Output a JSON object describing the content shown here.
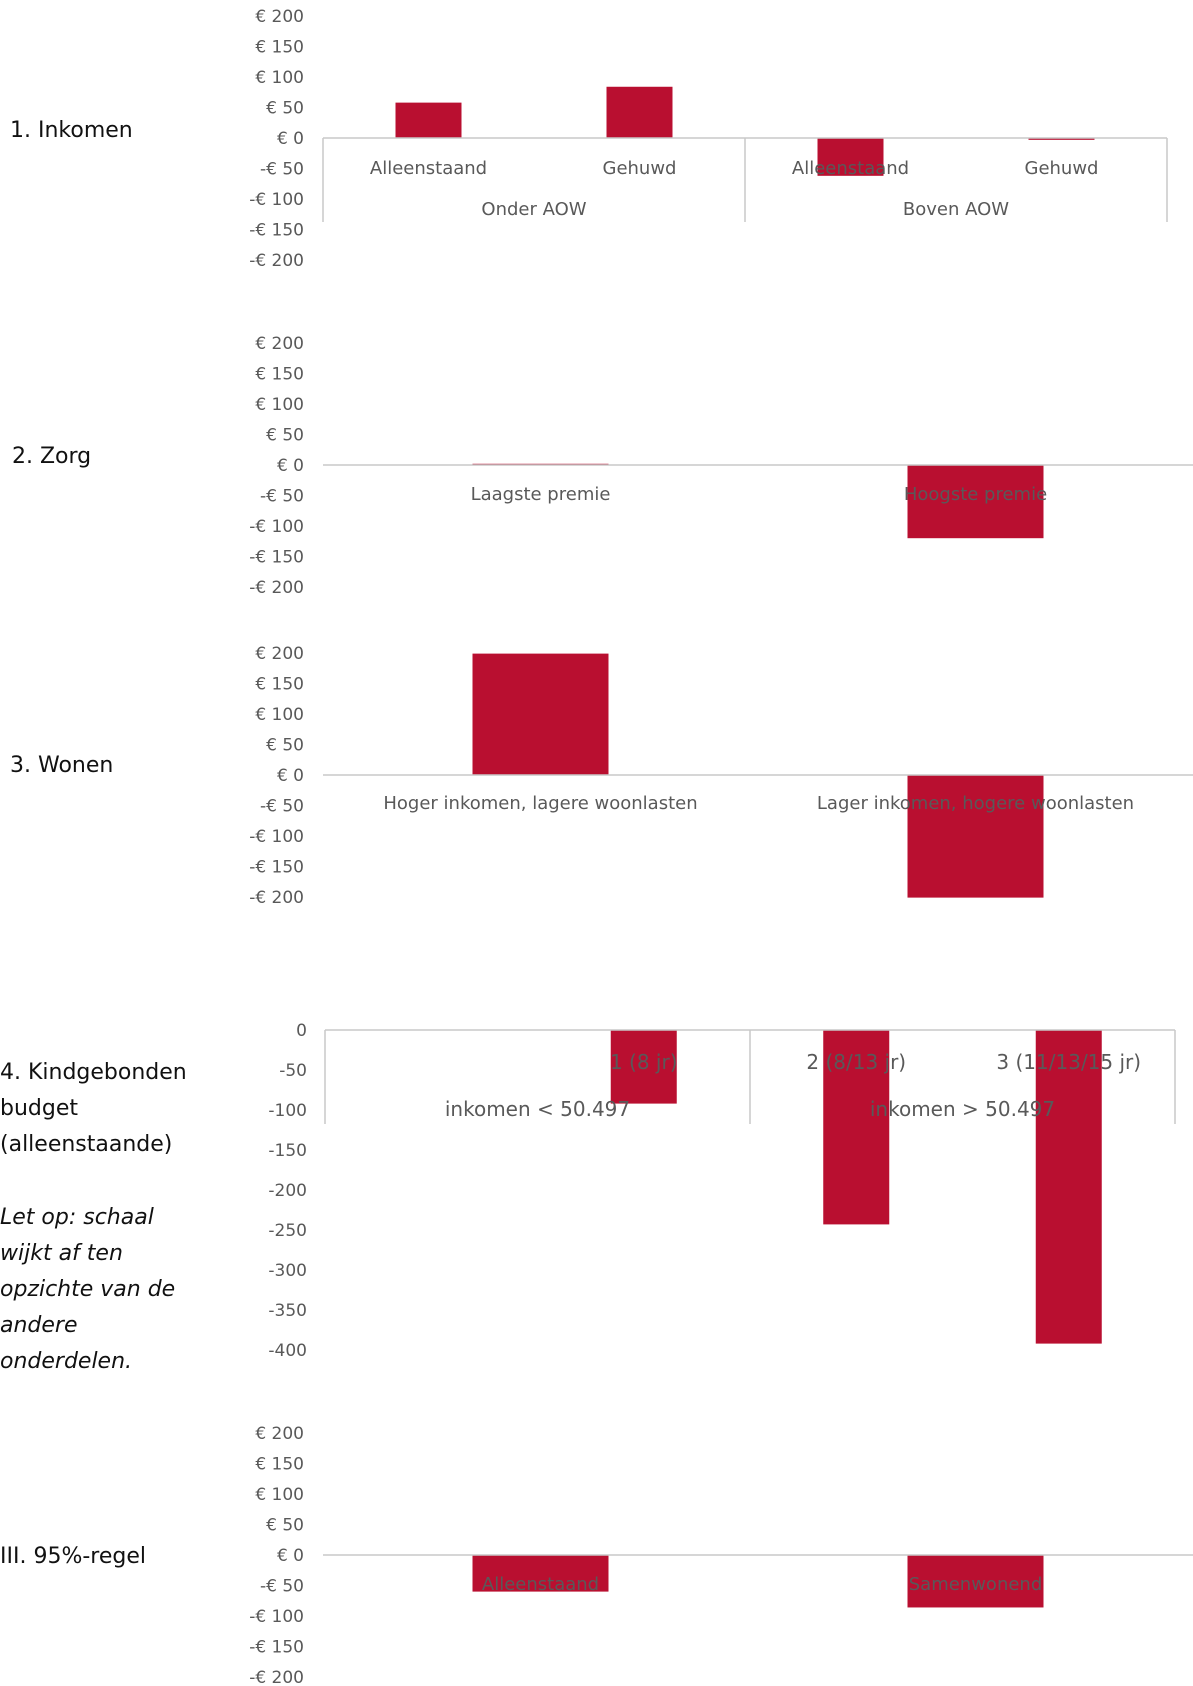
{
  "colors": {
    "bar": "#b90f30",
    "axis": "#c8c8c8",
    "tick_text": "#595959",
    "category_text": "#595959"
  },
  "sections": [
    {
      "label": "1. Inkomen"
    },
    {
      "label": "2. Zorg"
    },
    {
      "label": "3. Wonen"
    },
    {
      "label": "4. Kindgebonden budget (alleenstaande)",
      "note": "Let op: schaal wijkt af ten opzichte van de andere onderdelen."
    },
    {
      "label": "III. 95%-regel"
    }
  ],
  "chart_data": [
    {
      "type": "bar",
      "title": "",
      "ylim": [
        -200,
        200
      ],
      "yticks": [
        "€ 200",
        "€ 150",
        "€ 100",
        "€ 50",
        "€ 0",
        "-€ 50",
        "-€ 100",
        "-€ 150",
        "-€ 200"
      ],
      "groups": [
        "Onder AOW",
        "Boven AOW"
      ],
      "categories": [
        "Alleenstaand",
        "Gehuwd",
        "Alleenstaand",
        "Gehuwd"
      ],
      "values": [
        58,
        84,
        -62,
        -3
      ]
    },
    {
      "type": "bar",
      "title": "",
      "ylim": [
        -200,
        200
      ],
      "yticks": [
        "€ 200",
        "€ 150",
        "€ 100",
        "€ 50",
        "€ 0",
        "-€ 50",
        "-€ 100",
        "-€ 150",
        "-€ 200"
      ],
      "categories": [
        "Laagste premie",
        "Hoogste premie"
      ],
      "values": [
        2,
        -120
      ]
    },
    {
      "type": "bar",
      "title": "",
      "ylim": [
        -200,
        200
      ],
      "yticks": [
        "€ 200",
        "€ 150",
        "€ 100",
        "€ 50",
        "€ 0",
        "-€ 50",
        "-€ 100",
        "-€ 150",
        "-€ 200"
      ],
      "categories": [
        "Hoger inkomen, lagere woonlasten",
        "Lager inkomen, hogere woonlasten"
      ],
      "values": [
        199,
        -201
      ]
    },
    {
      "type": "bar",
      "title": "",
      "ylim": [
        -400,
        0
      ],
      "yticks": [
        "0",
        "-50",
        "-100",
        "-150",
        "-200",
        "-250",
        "-300",
        "-350",
        "-400"
      ],
      "groups": [
        "inkomen < 50.497",
        "inkomen > 50.497"
      ],
      "categories": [
        "",
        "1 (8 jr)",
        "2 (8/13 jr)",
        "3 (11/13/15 jr)"
      ],
      "values": [
        0,
        -92,
        -243,
        -392
      ]
    },
    {
      "type": "bar",
      "title": "",
      "ylim": [
        -200,
        200
      ],
      "yticks": [
        "€ 200",
        "€ 150",
        "€ 100",
        "€ 50",
        "€ 0",
        "-€ 50",
        "-€ 100",
        "-€ 150",
        "-€ 200"
      ],
      "categories": [
        "Alleenstaand",
        "Samenwonend"
      ],
      "values": [
        -60,
        -86
      ]
    }
  ]
}
